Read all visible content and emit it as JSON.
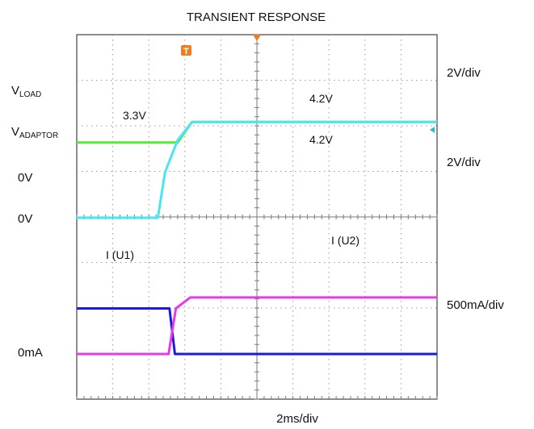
{
  "chart_data": {
    "type": "line",
    "title": "TRANSIENT RESPONSE",
    "xlabel": "2ms/div",
    "x_unit": "ms",
    "xlim": [
      0,
      20
    ],
    "grid": true,
    "trigger_marker": "T",
    "channel_scales": [
      "2V/div",
      "2V/div",
      "500mA/div"
    ],
    "channel_labels": {
      "vload": {
        "prefix": "V",
        "sub": "LOAD"
      },
      "vadaptor": {
        "prefix": "V",
        "sub": "ADAPTOR"
      },
      "zero_v_1": "0V",
      "zero_v_2": "0V",
      "zero_ma": "0mA"
    },
    "annotations": [
      "3.3V",
      "4.2V",
      "4.2V",
      "I (U1)",
      "I (U2)"
    ],
    "series": [
      {
        "name": "VLOAD",
        "color": "#55e83a",
        "unit": "V",
        "x": [
          0,
          5.6,
          6.4,
          20
        ],
        "y": [
          3.3,
          3.3,
          4.2,
          4.2
        ]
      },
      {
        "name": "VADAPTOR",
        "color": "#49e6f2",
        "unit": "V",
        "x": [
          0,
          4.5,
          4.9,
          5.6,
          6.4,
          20
        ],
        "y": [
          0,
          0,
          2.0,
          3.4,
          4.2,
          4.2
        ]
      },
      {
        "name": "I (U1)",
        "color": "#1a1ae0",
        "unit": "mA",
        "x": [
          0,
          5.15,
          5.45,
          20
        ],
        "y": [
          500,
          500,
          0,
          0
        ]
      },
      {
        "name": "I (U2)",
        "color": "#e63be6",
        "unit": "mA",
        "x": [
          0,
          5.1,
          5.5,
          6.3,
          20
        ],
        "y": [
          0,
          0,
          500,
          620,
          620
        ]
      }
    ]
  }
}
